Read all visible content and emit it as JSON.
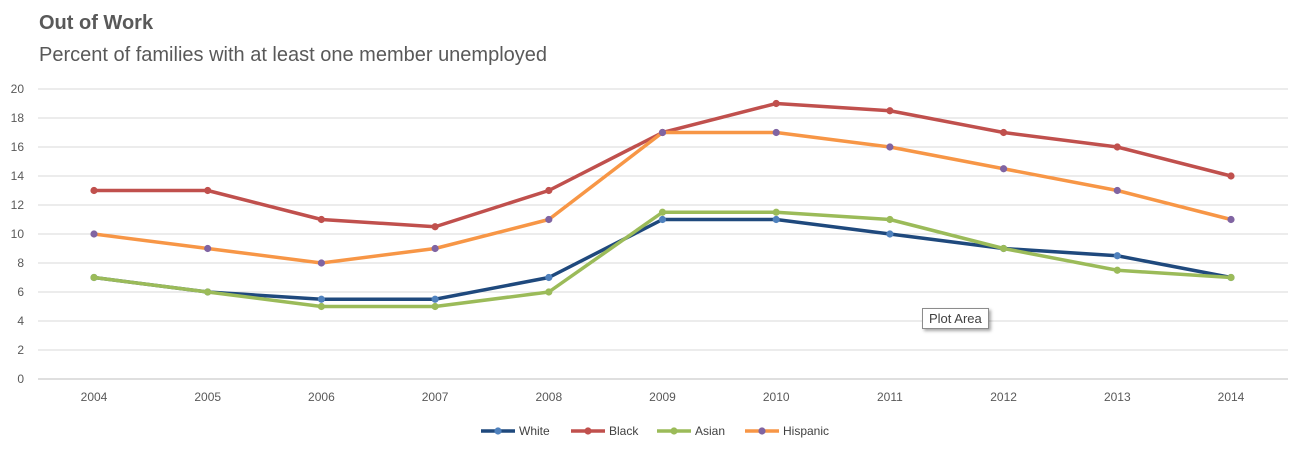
{
  "chart_data": {
    "type": "line",
    "title": "Out of Work",
    "subtitle": "Percent of families with at least one member unemployed",
    "xlabel": "",
    "ylabel": "",
    "categories": [
      "2004",
      "2005",
      "2006",
      "2007",
      "2008",
      "2009",
      "2010",
      "2011",
      "2012",
      "2013",
      "2014"
    ],
    "ylim": [
      0,
      20
    ],
    "yticks": [
      0,
      2,
      4,
      6,
      8,
      10,
      12,
      14,
      16,
      18,
      20
    ],
    "grid": true,
    "legend_position": "bottom",
    "series": [
      {
        "name": "White",
        "color": "#1f497d",
        "marker_color": "#4f81bd",
        "values": [
          7,
          6,
          5.5,
          5.5,
          7,
          11,
          11,
          10,
          9,
          8.5,
          7
        ]
      },
      {
        "name": "Black",
        "color": "#c0504d",
        "marker_color": "#c0504d",
        "values": [
          13,
          13,
          11,
          10.5,
          13,
          17,
          19,
          18.5,
          17,
          16,
          14
        ]
      },
      {
        "name": "Asian",
        "color": "#9bbb59",
        "marker_color": "#9bbb59",
        "values": [
          7,
          6,
          5,
          5,
          6,
          11.5,
          11.5,
          11,
          9,
          7.5,
          7
        ]
      },
      {
        "name": "Hispanic",
        "color": "#f79646",
        "marker_color": "#8064a2",
        "values": [
          10,
          9,
          8,
          9,
          11,
          17,
          17,
          16,
          14.5,
          13,
          11
        ]
      }
    ]
  },
  "tooltip": {
    "text": "Plot Area"
  }
}
